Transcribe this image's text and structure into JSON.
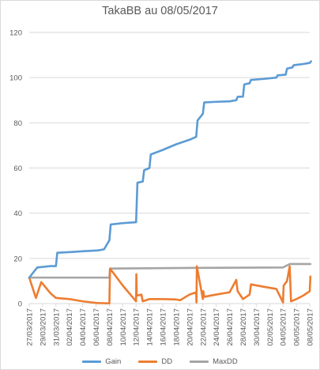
{
  "chart_data": {
    "type": "line",
    "title": "TakaBB au 08/05/2017",
    "xlabel": "",
    "ylabel": "",
    "ylim": [
      0,
      120
    ],
    "yticks": [
      0,
      20,
      40,
      60,
      80,
      100,
      120
    ],
    "xticks": [
      "27/03/2017",
      "29/03/2017",
      "31/03/2017",
      "02/04/2017",
      "04/04/2017",
      "06/04/2017",
      "08/04/2017",
      "10/04/2017",
      "12/04/2017",
      "14/04/2017",
      "16/04/2017",
      "18/04/2017",
      "20/04/2017",
      "22/04/2017",
      "24/04/2017",
      "26/04/2017",
      "28/04/2017",
      "30/04/2017",
      "02/05/2017",
      "04/05/2017",
      "06/05/2017",
      "08/05/2017"
    ],
    "grid": "horizontal",
    "legend": "bottom",
    "series": [
      {
        "name": "Gain",
        "color": "#5B9BD5",
        "points": [
          [
            0.0,
            11.5
          ],
          [
            0.6,
            16
          ],
          [
            1.6,
            16.6
          ],
          [
            2.0,
            16.6
          ],
          [
            2.1,
            22.5
          ],
          [
            3.1,
            22.8
          ],
          [
            4.1,
            23.2
          ],
          [
            5.1,
            23.5
          ],
          [
            5.6,
            24
          ],
          [
            6.0,
            28
          ],
          [
            6.1,
            35
          ],
          [
            7.0,
            35.6
          ],
          [
            8.0,
            36
          ],
          [
            8.1,
            53.5
          ],
          [
            8.5,
            54
          ],
          [
            8.6,
            59
          ],
          [
            9.0,
            60
          ],
          [
            9.1,
            66
          ],
          [
            10.0,
            68
          ],
          [
            11.0,
            70.5
          ],
          [
            12.0,
            72.5
          ],
          [
            12.5,
            73.8
          ],
          [
            12.6,
            81
          ],
          [
            13.0,
            84
          ],
          [
            13.1,
            89
          ],
          [
            14.0,
            89.3
          ],
          [
            15.0,
            89.5
          ],
          [
            15.5,
            90
          ],
          [
            15.6,
            91.5
          ],
          [
            16.0,
            91.6
          ],
          [
            16.1,
            97
          ],
          [
            16.5,
            97.5
          ],
          [
            16.6,
            99
          ],
          [
            17.5,
            99.4
          ],
          [
            18.5,
            100
          ],
          [
            18.6,
            101
          ],
          [
            19.2,
            101.3
          ],
          [
            19.3,
            104
          ],
          [
            19.7,
            104.5
          ],
          [
            19.8,
            105.5
          ],
          [
            20.5,
            106
          ],
          [
            21.0,
            106.5
          ],
          [
            21.1,
            107.2
          ]
        ]
      },
      {
        "name": "DD",
        "color": "#ED7D31",
        "points": [
          [
            0.0,
            11.5
          ],
          [
            0.5,
            2.5
          ],
          [
            0.9,
            9.5
          ],
          [
            1.6,
            4.5
          ],
          [
            2.0,
            2.5
          ],
          [
            3.0,
            2.0
          ],
          [
            4.0,
            1.0
          ],
          [
            5.0,
            0.3
          ],
          [
            5.8,
            0.1
          ],
          [
            6.0,
            0.1
          ],
          [
            6.05,
            15.5
          ],
          [
            7.0,
            8.0
          ],
          [
            8.0,
            1.0
          ],
          [
            8.02,
            13
          ],
          [
            8.05,
            3.5
          ],
          [
            8.4,
            4
          ],
          [
            8.5,
            1.0
          ],
          [
            9.0,
            2.0
          ],
          [
            10.0,
            2.0
          ],
          [
            11.0,
            1.8
          ],
          [
            11.3,
            1.5
          ],
          [
            12.0,
            4.0
          ],
          [
            12.5,
            5.0
          ],
          [
            12.52,
            0.5
          ],
          [
            12.55,
            16.5
          ],
          [
            13.0,
            2.0
          ],
          [
            13.03,
            5.5
          ],
          [
            13.1,
            3.0
          ],
          [
            14.0,
            4.0
          ],
          [
            14.5,
            4.5
          ],
          [
            15.0,
            5.0
          ],
          [
            15.5,
            10.5
          ],
          [
            15.6,
            5.5
          ],
          [
            16.0,
            2.0
          ],
          [
            16.5,
            4.0
          ],
          [
            16.6,
            8.5
          ],
          [
            17.5,
            7.5
          ],
          [
            18.5,
            6.5
          ],
          [
            19.0,
            0.5
          ],
          [
            19.02,
            4.0
          ],
          [
            19.05,
            8.0
          ],
          [
            19.3,
            10.0
          ],
          [
            19.5,
            16.5
          ],
          [
            19.6,
            1.0
          ],
          [
            20.0,
            2.0
          ],
          [
            20.5,
            3.5
          ],
          [
            21.0,
            5.5
          ],
          [
            21.05,
            12.0
          ]
        ]
      },
      {
        "name": "MaxDD",
        "color": "#A5A5A5",
        "points": [
          [
            0.0,
            11.5
          ],
          [
            6.0,
            11.5
          ],
          [
            6.05,
            15.5
          ],
          [
            12.55,
            15.8
          ],
          [
            19.0,
            16.0
          ],
          [
            19.5,
            17.5
          ],
          [
            21.05,
            17.5
          ]
        ]
      }
    ]
  }
}
